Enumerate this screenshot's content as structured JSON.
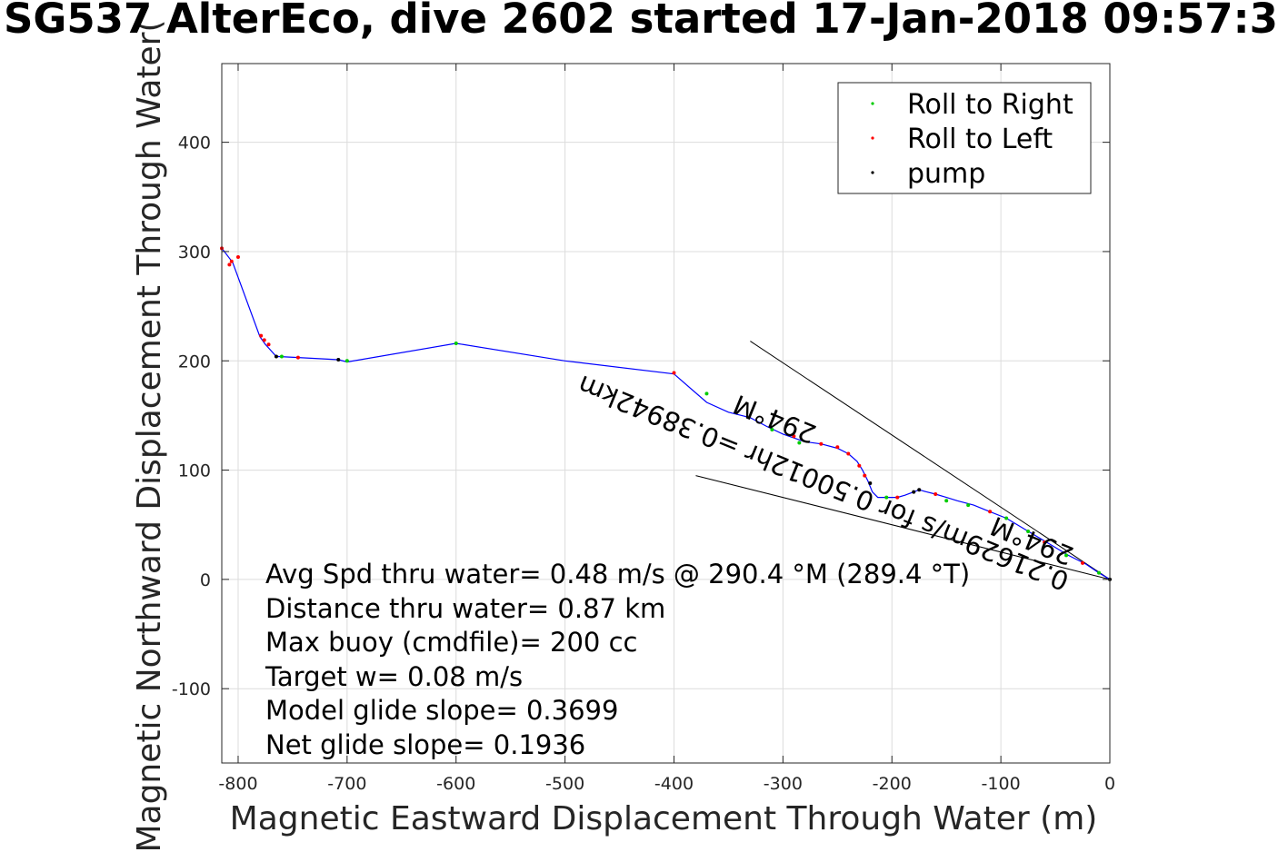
{
  "chart_data": {
    "type": "line",
    "title": "SG537 AlterEco, dive 2602 started 17-Jan-2018 09:57:3",
    "xlabel": "Magnetic Eastward Displacement Through Water (m)",
    "ylabel": "Magnetic Northward Displacement Through Water(",
    "xlim": [
      -815,
      0
    ],
    "ylim": [
      -168,
      472
    ],
    "xticks": [
      -800,
      -700,
      -600,
      -500,
      -400,
      -300,
      -200,
      -100,
      0
    ],
    "yticks": [
      -100,
      0,
      100,
      200,
      300,
      400
    ],
    "grid": true,
    "legend_position": "top-right",
    "legend": [
      {
        "label": "Roll to Right",
        "color": "#00cc00"
      },
      {
        "label": "Roll to Left",
        "color": "#ff0000"
      },
      {
        "label": "pump",
        "color": "#000000"
      }
    ],
    "series": [
      {
        "color": "#0000ff",
        "x": [
          0,
          -10,
          -22,
          -38,
          -58,
          -75,
          -95,
          -115,
          -125,
          -140,
          -150,
          -160,
          -168,
          -175,
          -180,
          -188,
          -195,
          -205,
          -213,
          -218,
          -222,
          -227,
          -232,
          -240,
          -250,
          -265,
          -280,
          -300,
          -315,
          -330,
          -350,
          -370,
          -400,
          -500,
          -600,
          -700,
          -708,
          -745,
          -765,
          -775,
          -780,
          -805,
          -815
        ],
        "y": [
          0,
          6,
          14,
          22,
          34,
          44,
          56,
          64,
          68,
          72,
          75,
          78,
          80,
          82,
          80,
          77,
          75,
          75,
          75,
          80,
          90,
          100,
          108,
          115,
          120,
          124,
          126,
          133,
          140,
          148,
          153,
          162,
          188,
          200,
          216,
          199,
          201,
          203,
          204,
          215,
          222,
          290,
          303
        ]
      }
    ],
    "roll_right_points": {
      "x": [
        -10,
        -40,
        -75,
        -95,
        -130,
        -150,
        -205,
        -285,
        -310,
        -370,
        -600,
        -700,
        -760
      ],
      "y": [
        6,
        22,
        44,
        56,
        68,
        72,
        75,
        125,
        137,
        170,
        216,
        200,
        204
      ]
    },
    "roll_left_points": {
      "x": [
        -25,
        -60,
        -110,
        -160,
        -195,
        -225,
        -230,
        -240,
        -250,
        -265,
        -290,
        -400,
        -745,
        -772,
        -776,
        -779,
        -800,
        -806,
        -808,
        -815
      ],
      "y": [
        15,
        34,
        62,
        78,
        75,
        95,
        104,
        115,
        121,
        124,
        131,
        189,
        203,
        215,
        219,
        223,
        295,
        291,
        288,
        303
      ]
    },
    "pump_points": {
      "x": [
        0,
        -175,
        -180,
        -220,
        -708,
        -765
      ],
      "y": [
        0,
        82,
        80,
        88,
        201,
        204
      ]
    },
    "reference_lines": [
      {
        "x": [
          0,
          -330
        ],
        "y": [
          0,
          218
        ]
      },
      {
        "x": [
          0,
          -380
        ],
        "y": [
          0,
          95
        ]
      }
    ],
    "rotated_annotation_1": "0.21629m/s for 0.50012hr =0.38942km",
    "rotated_annotation_2": "294°M",
    "rotated_annotation_3": "294°M",
    "annotations": [
      "Avg Spd thru water=  0.48 m/s @ 290.4 °M (289.4 °T)",
      "Distance thru water=  0.87 km",
      "Max buoy (cmdfile)= 200 cc",
      "Target w= 0.08 m/s",
      "Model glide slope= 0.3699",
      "Net glide slope= 0.1936"
    ]
  }
}
